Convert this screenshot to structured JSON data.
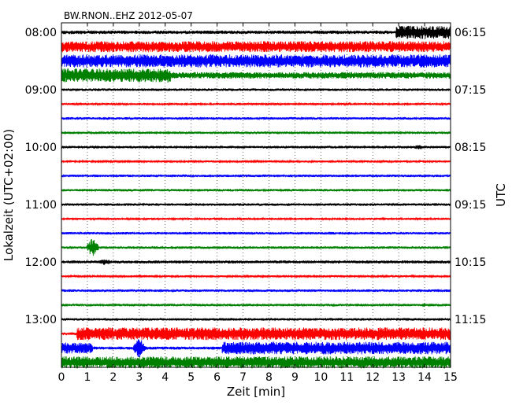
{
  "chart_data": {
    "type": "line",
    "title": "BW.RNON..EHZ 2012-05-07",
    "xlabel": "Zeit  [min]",
    "ylabel_left": "Lokalzeit (UTC+02:00)",
    "ylabel_right": "UTC",
    "xlim": [
      0,
      15
    ],
    "x_ticks": [
      "0",
      "1",
      "2",
      "3",
      "4",
      "5",
      "6",
      "7",
      "8",
      "9",
      "10",
      "11",
      "12",
      "13",
      "14",
      "15"
    ],
    "grid": "vertical-dotted",
    "trace_interval_min": 15,
    "first_trace_local": "08:00",
    "left_ticks": [
      "08:00",
      "09:00",
      "10:00",
      "11:00",
      "12:00",
      "13:00"
    ],
    "right_ticks": [
      "06:15",
      "07:15",
      "08:15",
      "09:15",
      "10:15",
      "11:15"
    ],
    "color_cycle": [
      "#000000",
      "#ff0000",
      "#0000ff",
      "#008000"
    ],
    "traces": [
      {
        "local": "08:00",
        "amp": 0.7,
        "events": [
          {
            "type": "band",
            "start": 12.9,
            "end": 15,
            "amp": 2.6
          }
        ]
      },
      {
        "local": "08:15",
        "amp": 2.2,
        "events": []
      },
      {
        "local": "08:30",
        "amp": 2.6,
        "events": []
      },
      {
        "local": "08:45",
        "amp": 1.3,
        "events": [
          {
            "type": "band",
            "start": 0.0,
            "end": 4.2,
            "amp": 2.7
          },
          {
            "type": "burst",
            "t": 4.1,
            "amp": 3.0,
            "dur": 0.2
          }
        ]
      },
      {
        "local": "09:00",
        "amp": 0.5,
        "events": []
      },
      {
        "local": "09:15",
        "amp": 0.4,
        "events": []
      },
      {
        "local": "09:30",
        "amp": 0.5,
        "events": []
      },
      {
        "local": "09:45",
        "amp": 0.5,
        "events": []
      },
      {
        "local": "10:00",
        "amp": 0.5,
        "events": [
          {
            "type": "burst",
            "t": 13.8,
            "amp": 1.0,
            "dur": 0.4
          }
        ]
      },
      {
        "local": "10:15",
        "amp": 0.4,
        "events": []
      },
      {
        "local": "10:30",
        "amp": 0.5,
        "events": []
      },
      {
        "local": "10:45",
        "amp": 0.5,
        "events": []
      },
      {
        "local": "11:00",
        "amp": 0.5,
        "events": []
      },
      {
        "local": "11:15",
        "amp": 0.4,
        "events": []
      },
      {
        "local": "11:30",
        "amp": 0.5,
        "events": []
      },
      {
        "local": "11:45",
        "amp": 0.5,
        "events": [
          {
            "type": "burst",
            "t": 1.2,
            "amp": 4.0,
            "dur": 0.3
          }
        ]
      },
      {
        "local": "12:00",
        "amp": 0.6,
        "events": [
          {
            "type": "burst",
            "t": 1.7,
            "amp": 1.4,
            "dur": 0.4
          }
        ]
      },
      {
        "local": "12:15",
        "amp": 0.4,
        "events": []
      },
      {
        "local": "12:30",
        "amp": 0.5,
        "events": []
      },
      {
        "local": "12:45",
        "amp": 0.5,
        "events": [
          {
            "type": "burst",
            "t": 14.0,
            "amp": 0.8,
            "dur": 0.3
          }
        ]
      },
      {
        "local": "13:00",
        "amp": 0.5,
        "events": []
      },
      {
        "local": "13:15",
        "amp": 0.6,
        "events": [
          {
            "type": "band",
            "start": 0.6,
            "end": 15,
            "amp": 2.5
          }
        ]
      },
      {
        "local": "13:30",
        "amp": 0.6,
        "events": [
          {
            "type": "band",
            "start": 0.0,
            "end": 1.2,
            "amp": 2.2
          },
          {
            "type": "burst",
            "t": 3.0,
            "amp": 4.5,
            "dur": 0.3
          },
          {
            "type": "band",
            "start": 6.2,
            "end": 15,
            "amp": 2.5
          }
        ]
      },
      {
        "local": "13:45",
        "amp": 2.4,
        "events": []
      }
    ]
  }
}
